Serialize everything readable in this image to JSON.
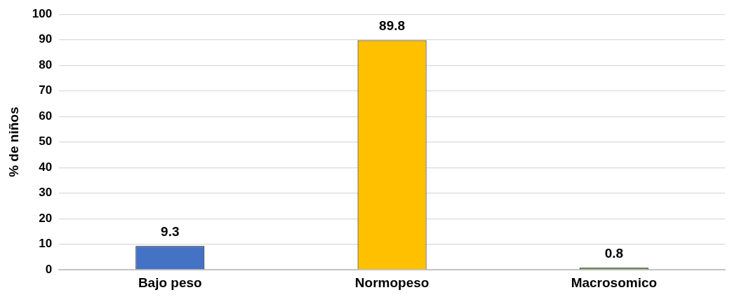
{
  "chart_data": {
    "type": "bar",
    "ylabel": "% de niños",
    "categories": [
      "Bajo peso",
      "Normopeso",
      "Macrosomico"
    ],
    "values": [
      9.3,
      89.8,
      0.8
    ],
    "colors": [
      "#4472c4",
      "#ffc000",
      "#548235"
    ],
    "ylim": [
      0,
      100
    ],
    "yticks": [
      0,
      10,
      20,
      30,
      40,
      50,
      60,
      70,
      80,
      90,
      100
    ],
    "grid": "y",
    "data_labels": true,
    "legend": false
  }
}
